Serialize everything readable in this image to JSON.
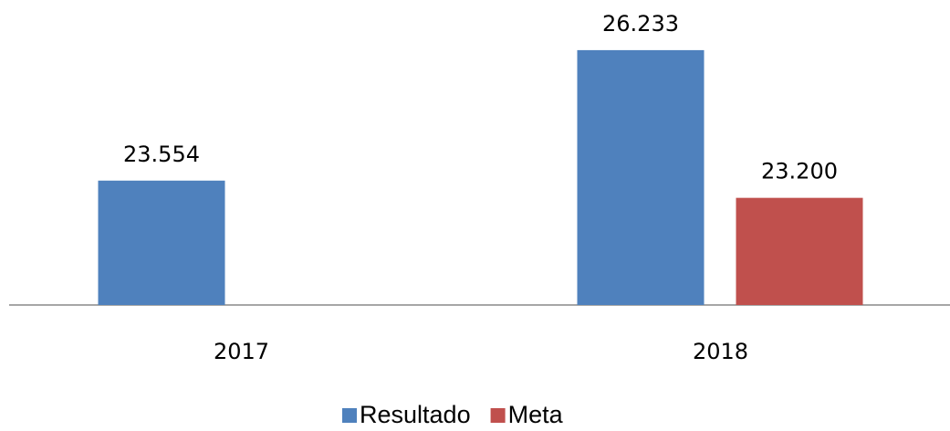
{
  "chart_data": {
    "type": "bar",
    "categories": [
      "2017",
      "2018"
    ],
    "series": [
      {
        "name": "Resultado",
        "color": "#4f81bd",
        "values": [
          23554,
          26233
        ],
        "value_labels": [
          "23.554",
          "26.233"
        ]
      },
      {
        "name": "Meta",
        "color": "#c0504d",
        "values": [
          null,
          23200
        ],
        "value_labels": [
          null,
          "23.200"
        ]
      }
    ],
    "ylim": [
      21000,
      27000
    ],
    "legend": "bottom"
  }
}
